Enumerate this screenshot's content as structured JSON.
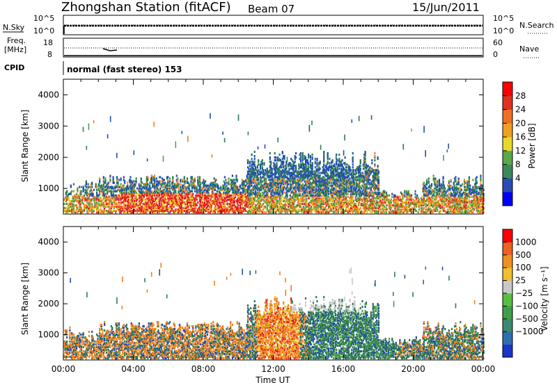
{
  "header": {
    "station": "Zhongshan Station (fitACF)",
    "beam": "Beam 07",
    "date": "15/Jun/2011"
  },
  "noise_panel": {
    "left_label": "N.Sky",
    "right_label": "N.Search",
    "left_ticks": [
      "10^5",
      "10^0"
    ],
    "right_ticks": [
      "10^5",
      "10^0"
    ]
  },
  "freq_panel": {
    "left_label_line1": "Freq.",
    "left_label_line2": "[MHz]",
    "right_label": "Nave",
    "left_ticks": [
      "18",
      "8"
    ],
    "right_ticks": [
      "60",
      "0"
    ]
  },
  "cpid": {
    "label": "CPID",
    "text": "normal (fast stereo) 153"
  },
  "colors": {
    "blue": "#1f4fb0",
    "dark_green": "#2f7a4f",
    "green": "#4fa04a",
    "yellow": "#e0d020",
    "orange": "#f08020",
    "red": "#e02020",
    "grey": "#c8c8c8"
  },
  "chart_data": [
    {
      "type": "heatmap",
      "name": "power",
      "ylabel": "Slant Range [km]",
      "yticks": [
        1000,
        2000,
        3000,
        4000
      ],
      "ylim": [
        180,
        4500
      ],
      "xlim": [
        0,
        24
      ],
      "colorbar": {
        "label": "Power [dB]",
        "ticks": [
          "28",
          "24",
          "20",
          "16",
          "12",
          "8",
          "4"
        ],
        "colors": [
          "#0000ff",
          "#2a4db3",
          "#3b8a5c",
          "#5aa84a",
          "#e6d92a",
          "#f0a020",
          "#f07020",
          "#e03020",
          "#ff0000"
        ]
      }
    },
    {
      "type": "heatmap",
      "name": "velocity",
      "ylabel": "Slant Range [km]",
      "yticks": [
        1000,
        2000,
        3000,
        4000
      ],
      "ylim": [
        180,
        4500
      ],
      "xlim": [
        0,
        24
      ],
      "xticks": [
        "00:00",
        "04:00",
        "08:00",
        "12:00",
        "16:00",
        "20:00",
        "00:00"
      ],
      "xlabel": "Time UT",
      "colorbar": {
        "label": "Velocity [m s⁻¹]",
        "ticks": [
          "1000",
          "500",
          "100",
          "25",
          "−25",
          "−100",
          "−500",
          "−1000"
        ],
        "colors": [
          "#1b36c8",
          "#2c6fb0",
          "#3b8a70",
          "#3f9e4a",
          "#55c040",
          "#c8c8c8",
          "#f0c030",
          "#f09020",
          "#f06020",
          "#ff0000"
        ]
      }
    }
  ]
}
